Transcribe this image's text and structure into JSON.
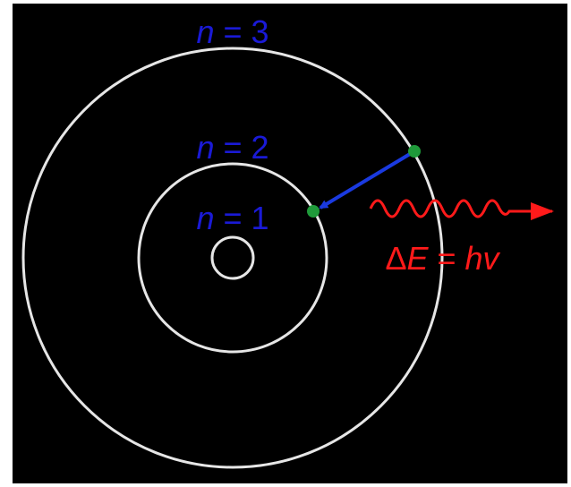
{
  "orbit_labels": [
    {
      "var": "n",
      "eq": " = 3"
    },
    {
      "var": "n",
      "eq": " = 2"
    },
    {
      "var": "n",
      "eq": " = 1"
    }
  ],
  "energy": {
    "delta": "Δ",
    "e": "E",
    "eq": " = ",
    "hv": "hv"
  },
  "colors": {
    "background": "#000000",
    "orbit": "#e6e6e6",
    "label": "#1a1ad6",
    "electron": "#1f9a3a",
    "transition_arrow": "#1a3ae0",
    "photon": "#ff1a1a"
  },
  "icons": {
    "nucleus": "nucleus-icon",
    "electron": "electron-icon",
    "photon": "photon-wave-icon"
  }
}
